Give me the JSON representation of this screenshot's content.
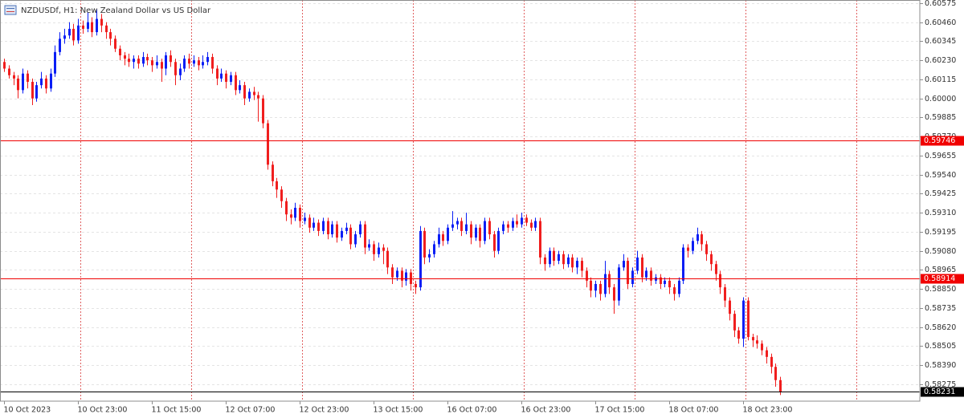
{
  "chart_data": {
    "type": "candlestick",
    "title": "NZDUSDf, H1:  New Zealand Dollar vs US Dollar",
    "up_color": "#0a1ef5",
    "down_color": "#f01e1e",
    "xlim": [
      -0.87,
      198.26
    ],
    "ylim": [
      0.58173,
      0.60594
    ],
    "grid": true,
    "xticks": [
      {
        "value": 0,
        "label": "10 Oct 2023"
      },
      {
        "value": 16,
        "label": "10 Oct 23:00"
      },
      {
        "value": 32,
        "label": "11 Oct 15:00"
      },
      {
        "value": 48,
        "label": "12 Oct 07:00"
      },
      {
        "value": 64,
        "label": "12 Oct 23:00"
      },
      {
        "value": 80,
        "label": "13 Oct 15:00"
      },
      {
        "value": 96,
        "label": "16 Oct 07:00"
      },
      {
        "value": 112,
        "label": "16 Oct 23:00"
      },
      {
        "value": 128,
        "label": "17 Oct 15:00"
      },
      {
        "value": 144,
        "label": "18 Oct 07:00"
      },
      {
        "value": 160,
        "label": "18 Oct 23:00"
      }
    ],
    "xgrid": [
      16.5,
      40.5,
      64.5,
      88.5,
      112.5,
      136.5,
      160.5,
      184.5
    ],
    "yticks": [
      0.60575,
      {
        "value": 0.6046,
        "label": "0.60460"
      },
      0.60345,
      {
        "value": 0.6023,
        "label": "0.60230"
      },
      0.60115,
      {
        "value": 0.6,
        "label": "0.60000"
      },
      0.59885,
      {
        "value": 0.5977,
        "label": "0.59770"
      },
      0.59655,
      {
        "value": 0.5954,
        "label": "0.59540"
      },
      0.59425,
      {
        "value": 0.5931,
        "label": "0.59310"
      },
      0.59195,
      {
        "value": 0.5908,
        "label": "0.59080"
      },
      0.58965,
      {
        "value": 0.5885,
        "label": "0.58850"
      },
      0.58735,
      {
        "value": 0.5862,
        "label": "0.58620"
      },
      0.58505,
      {
        "value": 0.5839,
        "label": "0.58390"
      },
      0.58275
    ],
    "price_lines": [
      {
        "value": 0.59746,
        "color": "#f00000"
      },
      {
        "value": 0.58914,
        "color": "#f00000"
      }
    ],
    "bid_line": {
      "value": 0.58231,
      "color": "#000000"
    },
    "ohlc": [
      [
        0.6022,
        0.6024,
        0.6016,
        0.6018
      ],
      [
        0.6018,
        0.602,
        0.6012,
        0.6014
      ],
      [
        0.6014,
        0.6016,
        0.6008,
        0.6012
      ],
      [
        0.6012,
        0.6014,
        0.6,
        0.6005
      ],
      [
        0.6005,
        0.6018,
        0.6003,
        0.6015
      ],
      [
        0.6015,
        0.6017,
        0.6006,
        0.601
      ],
      [
        0.601,
        0.6012,
        0.5996,
        0.6
      ],
      [
        0.6,
        0.601,
        0.5998,
        0.6008
      ],
      [
        0.6008,
        0.6016,
        0.6006,
        0.6012
      ],
      [
        0.6012,
        0.6014,
        0.6003,
        0.6006
      ],
      [
        0.6006,
        0.6018,
        0.6004,
        0.6015
      ],
      [
        0.6015,
        0.6032,
        0.6013,
        0.6028
      ],
      [
        0.6028,
        0.604,
        0.6026,
        0.6036
      ],
      [
        0.6036,
        0.6042,
        0.6033,
        0.6038
      ],
      [
        0.6038,
        0.6046,
        0.6036,
        0.6042
      ],
      [
        0.6042,
        0.6045,
        0.6032,
        0.6035
      ],
      [
        0.6035,
        0.6048,
        0.6033,
        0.6044
      ],
      [
        0.6044,
        0.6047,
        0.6039,
        0.6042
      ],
      [
        0.6042,
        0.6052,
        0.604,
        0.6046
      ],
      [
        0.6046,
        0.6049,
        0.6037,
        0.604
      ],
      [
        0.604,
        0.6054,
        0.6038,
        0.6048
      ],
      [
        0.6048,
        0.6051,
        0.604,
        0.6044
      ],
      [
        0.6044,
        0.6046,
        0.6036,
        0.604
      ],
      [
        0.604,
        0.6042,
        0.6032,
        0.6036
      ],
      [
        0.6036,
        0.6038,
        0.6028,
        0.603
      ],
      [
        0.603,
        0.6032,
        0.6023,
        0.6026
      ],
      [
        0.6026,
        0.6028,
        0.602,
        0.6024
      ],
      [
        0.6024,
        0.6027,
        0.6019,
        0.6022
      ],
      [
        0.6022,
        0.6026,
        0.6018,
        0.6024
      ],
      [
        0.6024,
        0.6026,
        0.6018,
        0.6021
      ],
      [
        0.6021,
        0.6028,
        0.6019,
        0.6025
      ],
      [
        0.6025,
        0.6027,
        0.602,
        0.6023
      ],
      [
        0.6023,
        0.6025,
        0.6016,
        0.602
      ],
      [
        0.602,
        0.6026,
        0.6018,
        0.6022
      ],
      [
        0.6022,
        0.6024,
        0.601,
        0.6018
      ],
      [
        0.6018,
        0.6028,
        0.6014,
        0.6026
      ],
      [
        0.6026,
        0.6029,
        0.6019,
        0.6022
      ],
      [
        0.6022,
        0.6024,
        0.6008,
        0.6014
      ],
      [
        0.6014,
        0.6021,
        0.6011,
        0.6018
      ],
      [
        0.6018,
        0.6026,
        0.6016,
        0.6024
      ],
      [
        0.6024,
        0.6027,
        0.6018,
        0.6021
      ],
      [
        0.6021,
        0.6026,
        0.6019,
        0.6023
      ],
      [
        0.6023,
        0.6025,
        0.6017,
        0.602
      ],
      [
        0.602,
        0.6026,
        0.6018,
        0.6022
      ],
      [
        0.6022,
        0.6028,
        0.602,
        0.6025
      ],
      [
        0.6025,
        0.6027,
        0.6015,
        0.6018
      ],
      [
        0.6018,
        0.602,
        0.6008,
        0.6012
      ],
      [
        0.6012,
        0.6018,
        0.601,
        0.6015
      ],
      [
        0.6015,
        0.6017,
        0.6006,
        0.601
      ],
      [
        0.601,
        0.6016,
        0.6008,
        0.6014
      ],
      [
        0.6014,
        0.6016,
        0.6002,
        0.6005
      ],
      [
        0.6005,
        0.6011,
        0.6003,
        0.6008
      ],
      [
        0.6008,
        0.601,
        0.5996,
        0.6
      ],
      [
        0.6,
        0.6006,
        0.5998,
        0.6004
      ],
      [
        0.6004,
        0.6007,
        0.5999,
        0.6002
      ],
      [
        0.6002,
        0.6004,
        0.5986,
        0.6
      ],
      [
        0.6,
        0.6002,
        0.5982,
        0.5985
      ],
      [
        0.5985,
        0.5987,
        0.5957,
        0.596
      ],
      [
        0.596,
        0.5962,
        0.5947,
        0.595
      ],
      [
        0.595,
        0.5952,
        0.594,
        0.5945
      ],
      [
        0.5945,
        0.5947,
        0.5934,
        0.5938
      ],
      [
        0.5938,
        0.594,
        0.5926,
        0.593
      ],
      [
        0.593,
        0.5933,
        0.5924,
        0.5928
      ],
      [
        0.5928,
        0.5937,
        0.5926,
        0.5934
      ],
      [
        0.5934,
        0.5936,
        0.5922,
        0.5926
      ],
      [
        0.5926,
        0.5931,
        0.5924,
        0.5928
      ],
      [
        0.5928,
        0.593,
        0.5919,
        0.5922
      ],
      [
        0.5922,
        0.5928,
        0.592,
        0.5925
      ],
      [
        0.5925,
        0.5927,
        0.5917,
        0.592
      ],
      [
        0.592,
        0.5928,
        0.5918,
        0.5926
      ],
      [
        0.5926,
        0.5928,
        0.5915,
        0.5918
      ],
      [
        0.5918,
        0.5926,
        0.5916,
        0.5924
      ],
      [
        0.5924,
        0.5926,
        0.5913,
        0.5916
      ],
      [
        0.5916,
        0.5922,
        0.5914,
        0.592
      ],
      [
        0.592,
        0.5925,
        0.5918,
        0.5922
      ],
      [
        0.5922,
        0.5924,
        0.5909,
        0.5912
      ],
      [
        0.5912,
        0.592,
        0.591,
        0.5918
      ],
      [
        0.5918,
        0.5926,
        0.5916,
        0.5924
      ],
      [
        0.5924,
        0.5926,
        0.5906,
        0.591
      ],
      [
        0.591,
        0.5915,
        0.5908,
        0.5912
      ],
      [
        0.5912,
        0.5914,
        0.5902,
        0.5906
      ],
      [
        0.5906,
        0.5913,
        0.5904,
        0.591
      ],
      [
        0.591,
        0.5912,
        0.59,
        0.5908
      ],
      [
        0.5908,
        0.591,
        0.5894,
        0.5898
      ],
      [
        0.5898,
        0.59,
        0.5888,
        0.5892
      ],
      [
        0.5892,
        0.5898,
        0.589,
        0.5896
      ],
      [
        0.5896,
        0.5898,
        0.5886,
        0.589
      ],
      [
        0.589,
        0.5897,
        0.5887,
        0.5895
      ],
      [
        0.5895,
        0.5897,
        0.5884,
        0.5888
      ],
      [
        0.5888,
        0.589,
        0.5882,
        0.5886
      ],
      [
        0.5886,
        0.5923,
        0.5884,
        0.592
      ],
      [
        0.592,
        0.5922,
        0.59,
        0.5904
      ],
      [
        0.5904,
        0.5909,
        0.5901,
        0.5906
      ],
      [
        0.5906,
        0.5914,
        0.5904,
        0.5912
      ],
      [
        0.5912,
        0.5922,
        0.591,
        0.5918
      ],
      [
        0.5918,
        0.592,
        0.5911,
        0.5914
      ],
      [
        0.5914,
        0.5924,
        0.5912,
        0.5922
      ],
      [
        0.5922,
        0.5932,
        0.592,
        0.5924
      ],
      [
        0.5924,
        0.5928,
        0.5921,
        0.5926
      ],
      [
        0.5926,
        0.5928,
        0.5917,
        0.592
      ],
      [
        0.592,
        0.5931,
        0.5918,
        0.5924
      ],
      [
        0.5924,
        0.5926,
        0.5912,
        0.5916
      ],
      [
        0.5916,
        0.5924,
        0.5914,
        0.5922
      ],
      [
        0.5922,
        0.5924,
        0.591,
        0.5914
      ],
      [
        0.5914,
        0.5928,
        0.5912,
        0.5926
      ],
      [
        0.5926,
        0.5928,
        0.5915,
        0.5918
      ],
      [
        0.5918,
        0.592,
        0.5904,
        0.5908
      ],
      [
        0.5908,
        0.5922,
        0.5906,
        0.592
      ],
      [
        0.592,
        0.5926,
        0.5918,
        0.5924
      ],
      [
        0.5924,
        0.5926,
        0.5919,
        0.5922
      ],
      [
        0.5922,
        0.5928,
        0.592,
        0.5926
      ],
      [
        0.5926,
        0.593,
        0.5922,
        0.5924
      ],
      [
        0.5924,
        0.5931,
        0.5922,
        0.5928
      ],
      [
        0.5928,
        0.593,
        0.5923,
        0.5925
      ],
      [
        0.5925,
        0.5927,
        0.592,
        0.5922
      ],
      [
        0.5922,
        0.5928,
        0.592,
        0.5926
      ],
      [
        0.5926,
        0.5928,
        0.59,
        0.5904
      ],
      [
        0.5904,
        0.5906,
        0.5896,
        0.59
      ],
      [
        0.59,
        0.591,
        0.5898,
        0.5908
      ],
      [
        0.5908,
        0.591,
        0.5899,
        0.5902
      ],
      [
        0.5902,
        0.5908,
        0.59,
        0.5906
      ],
      [
        0.5906,
        0.5908,
        0.5897,
        0.59
      ],
      [
        0.59,
        0.5906,
        0.5898,
        0.5904
      ],
      [
        0.5904,
        0.5906,
        0.5895,
        0.5898
      ],
      [
        0.5898,
        0.5904,
        0.5894,
        0.5902
      ],
      [
        0.5902,
        0.5904,
        0.5892,
        0.5896
      ],
      [
        0.5896,
        0.5898,
        0.5886,
        0.589
      ],
      [
        0.589,
        0.5892,
        0.588,
        0.5884
      ],
      [
        0.5884,
        0.589,
        0.588,
        0.5888
      ],
      [
        0.5888,
        0.589,
        0.5878,
        0.5882
      ],
      [
        0.5882,
        0.5902,
        0.588,
        0.5894
      ],
      [
        0.5894,
        0.5896,
        0.5882,
        0.5886
      ],
      [
        0.5886,
        0.5888,
        0.587,
        0.5878
      ],
      [
        0.5878,
        0.59,
        0.5875,
        0.5898
      ],
      [
        0.5898,
        0.5906,
        0.5896,
        0.5902
      ],
      [
        0.5902,
        0.5904,
        0.5885,
        0.5888
      ],
      [
        0.5888,
        0.5898,
        0.5886,
        0.5896
      ],
      [
        0.5896,
        0.5908,
        0.5894,
        0.5904
      ],
      [
        0.5904,
        0.5906,
        0.5889,
        0.5892
      ],
      [
        0.5892,
        0.5898,
        0.589,
        0.5896
      ],
      [
        0.5896,
        0.5898,
        0.5887,
        0.589
      ],
      [
        0.589,
        0.5894,
        0.5888,
        0.5892
      ],
      [
        0.5892,
        0.5894,
        0.5885,
        0.5888
      ],
      [
        0.5888,
        0.5892,
        0.5886,
        0.589
      ],
      [
        0.589,
        0.5892,
        0.5882,
        0.5886
      ],
      [
        0.5886,
        0.5888,
        0.5878,
        0.5882
      ],
      [
        0.5882,
        0.5892,
        0.588,
        0.589
      ],
      [
        0.589,
        0.5912,
        0.5888,
        0.591
      ],
      [
        0.591,
        0.5912,
        0.5904,
        0.5908
      ],
      [
        0.5908,
        0.5916,
        0.5906,
        0.5914
      ],
      [
        0.5914,
        0.5922,
        0.5912,
        0.5918
      ],
      [
        0.5918,
        0.592,
        0.5908,
        0.5912
      ],
      [
        0.5912,
        0.5914,
        0.5902,
        0.5906
      ],
      [
        0.5906,
        0.5908,
        0.5896,
        0.59
      ],
      [
        0.59,
        0.5902,
        0.589,
        0.5894
      ],
      [
        0.5894,
        0.5896,
        0.5882,
        0.5886
      ],
      [
        0.5886,
        0.5888,
        0.5874,
        0.5878
      ],
      [
        0.5878,
        0.588,
        0.5866,
        0.587
      ],
      [
        0.587,
        0.5872,
        0.5856,
        0.586
      ],
      [
        0.586,
        0.5862,
        0.5852,
        0.5855
      ],
      [
        0.5855,
        0.588,
        0.585,
        0.5878
      ],
      [
        0.5878,
        0.588,
        0.5854,
        0.5856
      ],
      [
        0.5856,
        0.5858,
        0.585,
        0.5854
      ],
      [
        0.5854,
        0.5857,
        0.5849,
        0.5852
      ],
      [
        0.5852,
        0.5854,
        0.5845,
        0.5848
      ],
      [
        0.5848,
        0.585,
        0.584,
        0.5844
      ],
      [
        0.5844,
        0.5846,
        0.5834,
        0.5838
      ],
      [
        0.5838,
        0.584,
        0.5826,
        0.583
      ],
      [
        0.583,
        0.5832,
        0.5821,
        0.58231
      ]
    ]
  }
}
